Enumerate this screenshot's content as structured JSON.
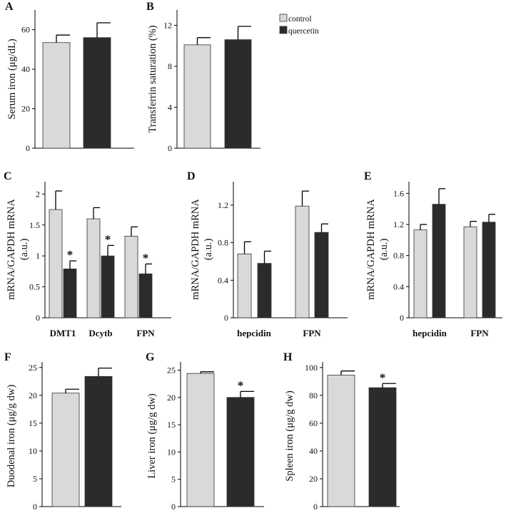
{
  "colors": {
    "control": "#d9d9d9",
    "quercetin": "#2b2b2b",
    "edge": "#333333"
  },
  "legend": {
    "entries": [
      {
        "key": "control",
        "label": "control"
      },
      {
        "key": "quercetin",
        "label": "quercetin"
      }
    ]
  },
  "chart_data": [
    {
      "id": "A",
      "panel_label": "A",
      "type": "bar",
      "ylabel": "Serum iron (μg/dL)",
      "ylim": [
        0,
        70
      ],
      "yticks": [
        0,
        20,
        40,
        60
      ],
      "tick_labels": [
        "0",
        "20",
        "40",
        "60"
      ],
      "categories": [
        ""
      ],
      "series": [
        {
          "name": "control",
          "values": [
            53.5
          ],
          "errors": [
            3.8
          ]
        },
        {
          "name": "quercetin",
          "values": [
            56
          ],
          "errors": [
            7.5
          ]
        }
      ],
      "significance": [
        [
          "",
          ""
        ]
      ]
    },
    {
      "id": "B",
      "panel_label": "B",
      "type": "bar",
      "ylabel": "Transferrin saturation (%)",
      "ylim": [
        0,
        13.5
      ],
      "yticks": [
        0,
        4,
        8,
        12
      ],
      "tick_labels": [
        "0",
        "4",
        "8",
        "12"
      ],
      "categories": [
        ""
      ],
      "series": [
        {
          "name": "control",
          "values": [
            10.1
          ],
          "errors": [
            0.7
          ]
        },
        {
          "name": "quercetin",
          "values": [
            10.6
          ],
          "errors": [
            1.3
          ]
        }
      ],
      "significance": [
        [
          "",
          ""
        ]
      ]
    },
    {
      "id": "C",
      "panel_label": "C",
      "type": "bar",
      "ylabel": "mRNA/GAPDH mRNA",
      "ylabel2": "(a.u.)",
      "ylim": [
        0,
        2.2
      ],
      "yticks": [
        0,
        0.5,
        1,
        1.5,
        2
      ],
      "tick_labels": [
        "0",
        "0.5",
        "1",
        "1.5",
        "2"
      ],
      "categories": [
        "DMT1",
        "Dcytb",
        "FPN"
      ],
      "series": [
        {
          "name": "control",
          "values": [
            1.75,
            1.6,
            1.32
          ],
          "errors": [
            0.3,
            0.18,
            0.15
          ]
        },
        {
          "name": "quercetin",
          "values": [
            0.79,
            1.0,
            0.71
          ],
          "errors": [
            0.13,
            0.17,
            0.16
          ]
        }
      ],
      "significance": [
        [
          "",
          "*"
        ],
        [
          "",
          "*"
        ],
        [
          "",
          "*"
        ]
      ]
    },
    {
      "id": "D",
      "panel_label": "D",
      "type": "bar",
      "ylabel": "mRNA/GAPDH mRNA",
      "ylabel2": "(a.u.)",
      "ylim": [
        0,
        1.45
      ],
      "yticks": [
        0,
        0.4,
        0.8,
        1.2
      ],
      "tick_labels": [
        "0",
        "0.4",
        "0.8",
        "1.2"
      ],
      "categories": [
        "hepcidin",
        "FPN"
      ],
      "series": [
        {
          "name": "control",
          "values": [
            0.68,
            1.19
          ],
          "errors": [
            0.13,
            0.16
          ]
        },
        {
          "name": "quercetin",
          "values": [
            0.58,
            0.91
          ],
          "errors": [
            0.13,
            0.09
          ]
        }
      ],
      "significance": [
        [
          "",
          ""
        ],
        [
          "",
          ""
        ]
      ]
    },
    {
      "id": "E",
      "panel_label": "E",
      "type": "bar",
      "ylabel": "mRNA/GAPDH mRNA",
      "ylabel2": "(a.u.)",
      "ylim": [
        0,
        1.75
      ],
      "yticks": [
        0,
        0.4,
        0.8,
        1.2,
        1.6
      ],
      "tick_labels": [
        "0",
        "0.4",
        "0.8",
        "1.2",
        "1.6"
      ],
      "categories": [
        "hepcidin",
        "FPN"
      ],
      "series": [
        {
          "name": "control",
          "values": [
            1.13,
            1.17
          ],
          "errors": [
            0.07,
            0.07
          ]
        },
        {
          "name": "quercetin",
          "values": [
            1.46,
            1.23
          ],
          "errors": [
            0.2,
            0.1
          ]
        }
      ],
      "significance": [
        [
          "",
          ""
        ],
        [
          "",
          ""
        ]
      ]
    },
    {
      "id": "F",
      "panel_label": "F",
      "type": "bar",
      "ylabel": "Duodenal iron (μg/g dw)",
      "ylim": [
        0,
        26
      ],
      "yticks": [
        0,
        5,
        10,
        15,
        20,
        25
      ],
      "tick_labels": [
        "0",
        "5",
        "10",
        "15",
        "20",
        "25"
      ],
      "categories": [
        ""
      ],
      "series": [
        {
          "name": "control",
          "values": [
            20.4
          ],
          "errors": [
            0.7
          ]
        },
        {
          "name": "quercetin",
          "values": [
            23.4
          ],
          "errors": [
            1.5
          ]
        }
      ],
      "significance": [
        [
          "",
          ""
        ]
      ]
    },
    {
      "id": "G",
      "panel_label": "G",
      "type": "bar",
      "ylabel": "Liver iron (μg/g dw)",
      "ylim": [
        0,
        26.5
      ],
      "yticks": [
        0,
        5,
        10,
        15,
        20,
        25
      ],
      "tick_labels": [
        "0",
        "5",
        "10",
        "15",
        "20",
        "25"
      ],
      "categories": [
        ""
      ],
      "series": [
        {
          "name": "control",
          "values": [
            24.4
          ],
          "errors": [
            0.3
          ]
        },
        {
          "name": "quercetin",
          "values": [
            20
          ],
          "errors": [
            1.1
          ]
        }
      ],
      "significance": [
        [
          "",
          "*"
        ]
      ]
    },
    {
      "id": "H",
      "panel_label": "H",
      "type": "bar",
      "ylabel": "Spleen iron (μg/g dw)",
      "ylim": [
        0,
        104
      ],
      "yticks": [
        0,
        20,
        40,
        60,
        80,
        100
      ],
      "tick_labels": [
        "0",
        "20",
        "40",
        "60",
        "80",
        "100"
      ],
      "categories": [
        ""
      ],
      "series": [
        {
          "name": "control",
          "values": [
            94.5
          ],
          "errors": [
            3
          ]
        },
        {
          "name": "quercetin",
          "values": [
            85.5
          ],
          "errors": [
            3
          ]
        }
      ],
      "significance": [
        [
          "",
          "*"
        ]
      ]
    }
  ]
}
